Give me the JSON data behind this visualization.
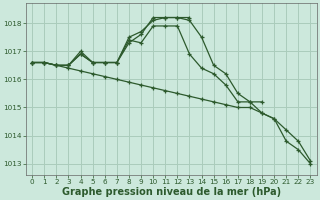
{
  "background_color": "#cce8dc",
  "grid_color": "#aaccbb",
  "line_color": "#2d5a2d",
  "xlabel": "Graphe pression niveau de la mer (hPa)",
  "xlabel_fontsize": 7.0,
  "xlim": [
    -0.5,
    23.5
  ],
  "ylim": [
    1012.6,
    1018.7
  ],
  "yticks": [
    1013,
    1014,
    1015,
    1016,
    1017,
    1018
  ],
  "xticks": [
    0,
    1,
    2,
    3,
    4,
    5,
    6,
    7,
    8,
    9,
    10,
    11,
    12,
    13,
    14,
    15,
    16,
    17,
    18,
    19,
    20,
    21,
    22,
    23
  ],
  "tick_fontsize": 5.2,
  "series": [
    [
      1016.6,
      1016.6,
      1016.5,
      1016.4,
      1016.3,
      1016.2,
      1016.1,
      1016.0,
      1015.9,
      1015.8,
      1015.7,
      1015.6,
      1015.5,
      1015.4,
      1015.3,
      1015.2,
      1015.1,
      1015.0,
      1015.0,
      1014.8,
      1014.6,
      1014.2,
      1013.8,
      1013.1
    ],
    [
      1016.6,
      1016.6,
      1016.5,
      1016.5,
      1016.9,
      1016.6,
      1016.6,
      1016.6,
      1017.4,
      1017.3,
      1017.9,
      1017.9,
      1017.9,
      1016.9,
      1016.4,
      1016.2,
      1015.8,
      1015.2,
      1015.2,
      1014.8,
      1014.6,
      1013.8,
      1013.5,
      1013.0
    ],
    [
      1016.6,
      1016.6,
      1016.5,
      1016.5,
      1016.9,
      1016.6,
      1016.6,
      1016.6,
      1017.5,
      1017.7,
      1018.1,
      1018.2,
      1018.2,
      1018.1,
      1017.5,
      1016.5,
      1016.2,
      1015.5,
      1015.2,
      1015.2,
      null,
      null,
      null,
      null
    ],
    [
      1016.6,
      1016.6,
      1016.5,
      1016.5,
      1017.0,
      1016.6,
      1016.6,
      1016.6,
      1017.3,
      1017.6,
      1018.2,
      1018.2,
      1018.2,
      1018.2,
      null,
      null,
      null,
      null,
      null,
      null,
      null,
      null,
      null,
      null
    ]
  ]
}
